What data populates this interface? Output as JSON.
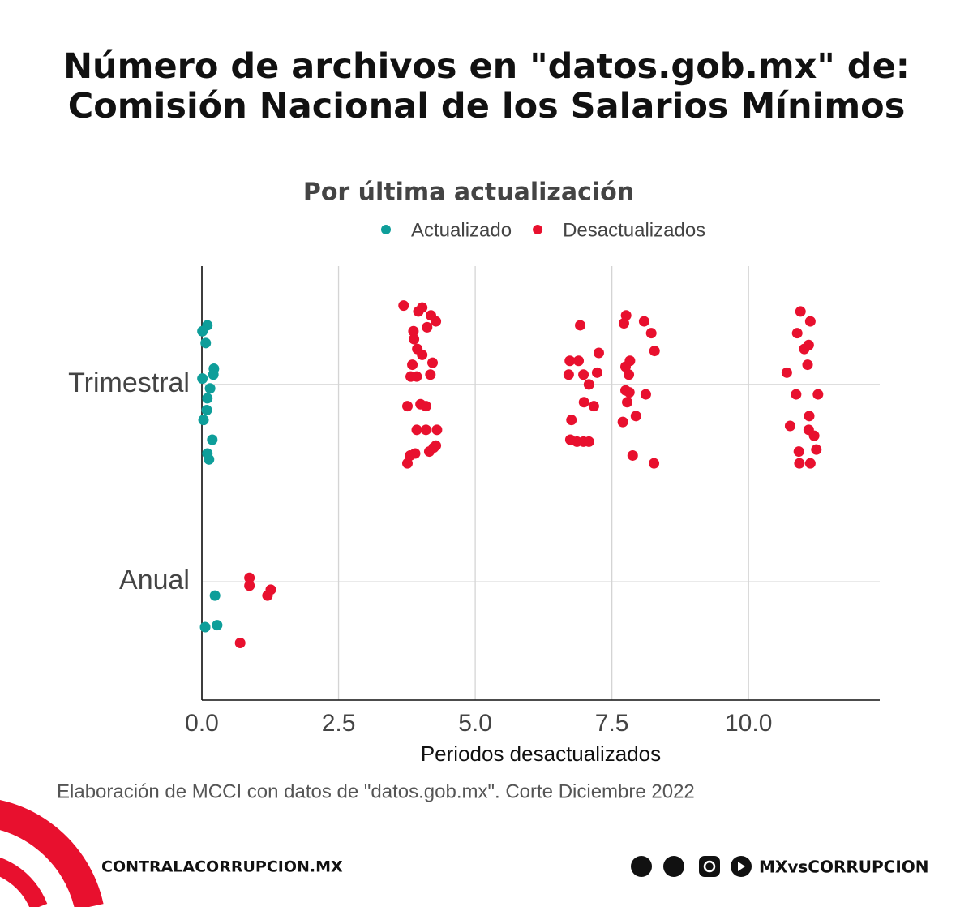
{
  "chart_data": {
    "type": "scatter",
    "title": "Número de archivos en \"datos.gob.mx\" de: Comisión Nacional de los Salarios Mínimos",
    "subtitle": "Por última actualización",
    "xlabel": "Periodos desactualizados",
    "caption": "Elaboración de MCCI con datos de \"datos.gob.mx\". Corte Diciembre 2022",
    "xlim": [
      0,
      12.4
    ],
    "xticks": [
      {
        "value": 0,
        "label": "0.0"
      },
      2.5,
      {
        "value": 5,
        "label": "5.0"
      },
      7.5,
      {
        "value": 10,
        "label": "10.0"
      }
    ],
    "ylim": [
      0.4,
      2.6
    ],
    "yticks": [
      {
        "value": 1,
        "label": "Anual"
      },
      {
        "value": 2,
        "label": "Trimestral"
      }
    ],
    "grid": true,
    "legend": "top",
    "series": [
      {
        "name": "Actualizado",
        "color": "#0e9e9a",
        "x": [
          0.1,
          0.01,
          0.07,
          0.22,
          0.01,
          0.21,
          0.15,
          0.1,
          0.09,
          0.03,
          0.19,
          0.1,
          0.13,
          0.24,
          0.06,
          0.28
        ],
        "y": [
          2.3,
          2.27,
          2.21,
          2.08,
          2.03,
          2.05,
          1.98,
          1.93,
          1.87,
          1.82,
          1.72,
          1.65,
          1.62,
          0.93,
          0.77,
          0.78
        ]
      },
      {
        "name": "Desactualizados",
        "color": "#e8102e",
        "x": [
          0.87,
          0.87,
          1.26,
          1.2,
          0.7,
          3.69,
          3.96,
          4.03,
          4.19,
          4.28,
          4.12,
          3.87,
          3.88,
          3.94,
          4.03,
          4.22,
          3.85,
          3.93,
          3.82,
          4.18,
          3.76,
          4.0,
          4.1,
          3.93,
          4.1,
          4.3,
          3.9,
          4.24,
          4.16,
          3.81,
          3.76,
          4.28,
          6.92,
          7.26,
          6.73,
          6.89,
          6.71,
          6.98,
          7.23,
          7.08,
          6.99,
          7.17,
          6.76,
          6.74,
          6.86,
          6.98,
          7.08,
          7.72,
          7.76,
          8.09,
          8.22,
          7.83,
          8.28,
          7.75,
          7.81,
          7.75,
          7.82,
          8.12,
          7.78,
          7.94,
          7.7,
          7.88,
          8.27,
          10.95,
          11.13,
          10.89,
          11.1,
          11.02,
          10.7,
          11.08,
          10.87,
          11.27,
          11.11,
          10.76,
          11.1,
          11.2,
          11.24,
          10.92,
          10.93,
          11.13
        ],
        "y": [
          1.02,
          0.98,
          0.96,
          0.93,
          0.69,
          2.4,
          2.37,
          2.39,
          2.35,
          2.32,
          2.29,
          2.27,
          2.23,
          2.18,
          2.15,
          2.11,
          2.1,
          2.04,
          2.04,
          2.05,
          1.89,
          1.9,
          1.89,
          1.77,
          1.77,
          1.77,
          1.65,
          1.68,
          1.66,
          1.64,
          1.6,
          1.69,
          2.3,
          2.16,
          2.12,
          2.12,
          2.05,
          2.05,
          2.06,
          2.0,
          1.91,
          1.89,
          1.82,
          1.72,
          1.71,
          1.71,
          1.71,
          2.31,
          2.35,
          2.32,
          2.26,
          2.12,
          2.17,
          2.09,
          2.05,
          1.97,
          1.96,
          1.95,
          1.91,
          1.84,
          1.81,
          1.64,
          1.6,
          2.37,
          2.32,
          2.26,
          2.2,
          2.18,
          2.06,
          2.1,
          1.95,
          1.95,
          1.84,
          1.79,
          1.77,
          1.74,
          1.67,
          1.66,
          1.6,
          1.6
        ]
      }
    ]
  },
  "footer": {
    "site": "CONTRALACORRUPCION.MX",
    "handle": "MXvsCORRUPCION"
  }
}
